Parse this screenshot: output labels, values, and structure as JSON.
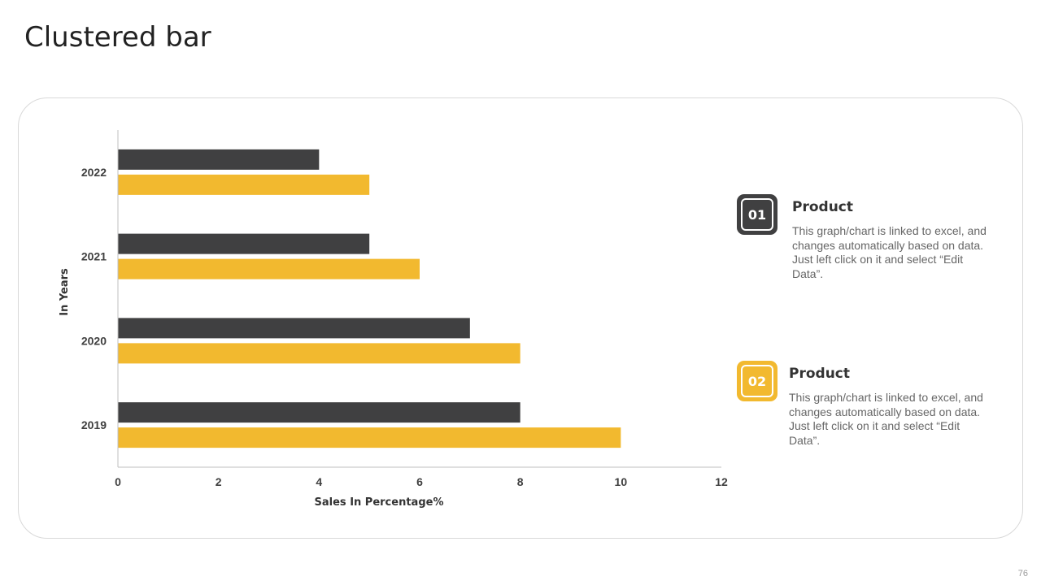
{
  "slide": {
    "title": "Clustered bar",
    "page_number": "76"
  },
  "colors": {
    "series_dark": "#404041",
    "series_yellow": "#F2B92F",
    "axis": "#bfbfbf"
  },
  "chart_data": {
    "type": "bar",
    "orientation": "horizontal",
    "categories": [
      "2019",
      "2020",
      "2021",
      "2022"
    ],
    "series": [
      {
        "name": "Product 01",
        "values": [
          8,
          7,
          5,
          4
        ]
      },
      {
        "name": "Product 02",
        "values": [
          10,
          8,
          6,
          5
        ]
      }
    ],
    "xlabel": "Sales In Percentage%",
    "ylabel": "In Years",
    "xlim": [
      0,
      12
    ],
    "xticks": [
      0,
      2,
      4,
      6,
      8,
      10,
      12
    ],
    "grid": false
  },
  "legend": [
    {
      "number": "01",
      "title": "Product",
      "description": "This graph/chart is linked to excel, and changes automatically based on data. Just left click on it and select “Edit Data”."
    },
    {
      "number": "02",
      "title": "Product",
      "description": "This graph/chart is linked to excel, and changes automatically based on data. Just left click on it and select “Edit Data”."
    }
  ]
}
